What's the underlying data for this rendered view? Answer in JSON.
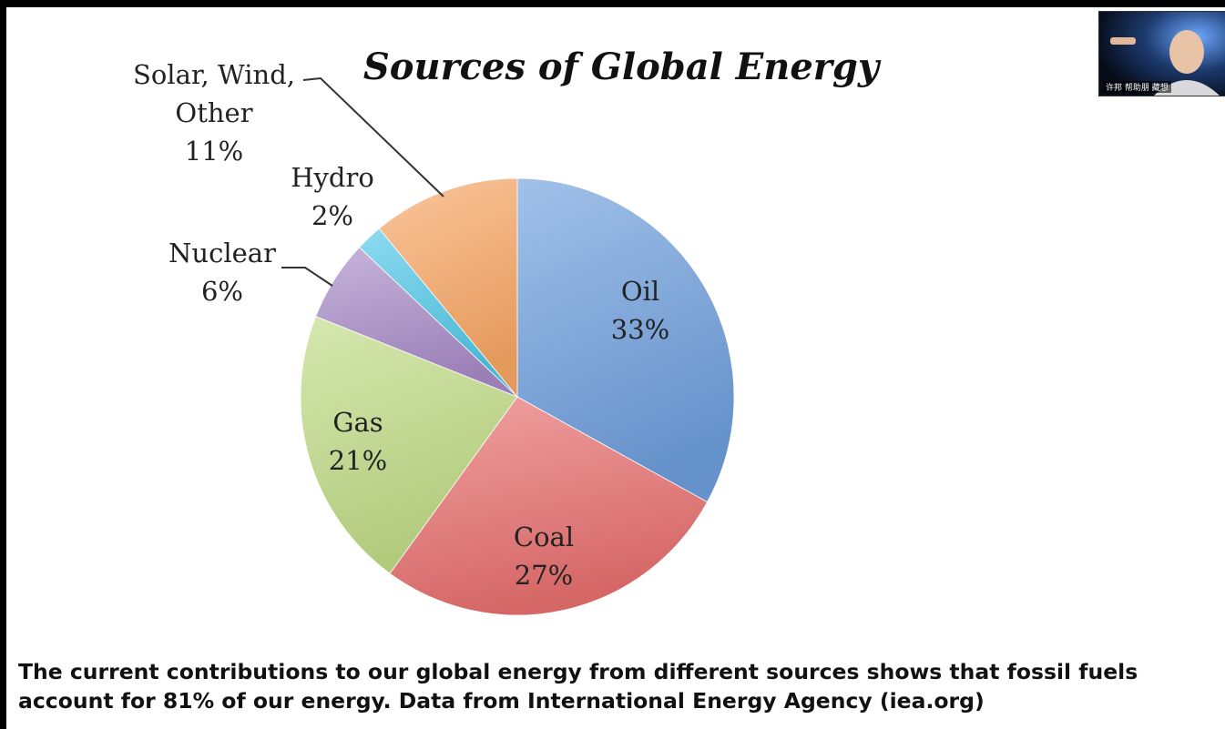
{
  "slide": {
    "caption": "The current contributions to our global energy from different sources shows that fossil fuels account for 81% of our energy. Data from International Energy Agency (iea.org)"
  },
  "webcam": {
    "label": "许邦 帮助朋 藏想"
  },
  "colors": {
    "oil": "#6f9fdd",
    "coal": "#e8706f",
    "gas": "#c0dc86",
    "nuclear": "#a98bc8",
    "hydro": "#4fc7e8",
    "solar": "#f9a765",
    "background": "#ffffff",
    "text": "#222222"
  },
  "chart_data": {
    "type": "pie",
    "title": "Sources of Global Energy",
    "start_angle_deg": 0,
    "direction": "clockwise",
    "slices": [
      {
        "key": "oil",
        "label_lines": [
          "Oil"
        ],
        "percent_label": "33%",
        "value": 33
      },
      {
        "key": "coal",
        "label_lines": [
          "Coal"
        ],
        "percent_label": "27%",
        "value": 27
      },
      {
        "key": "gas",
        "label_lines": [
          "Gas"
        ],
        "percent_label": "21%",
        "value": 21
      },
      {
        "key": "nuclear",
        "label_lines": [
          "Nuclear"
        ],
        "percent_label": "6%",
        "value": 6
      },
      {
        "key": "hydro",
        "label_lines": [
          "Hydro"
        ],
        "percent_label": "2%",
        "value": 2
      },
      {
        "key": "solar",
        "label_lines": [
          "Solar, Wind,",
          "Other"
        ],
        "percent_label": "11%",
        "value": 11
      }
    ]
  }
}
